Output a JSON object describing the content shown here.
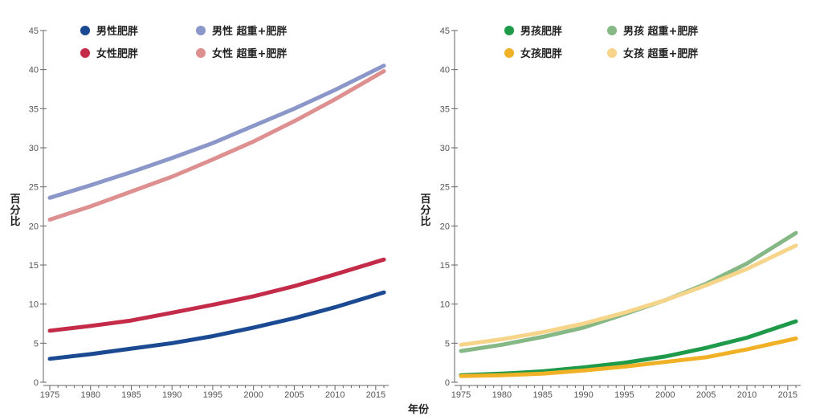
{
  "x_axis_title": "年份",
  "chart_data": [
    {
      "type": "line",
      "xlabel": "年份",
      "ylabel": "百分比",
      "xlim": [
        1975,
        2016
      ],
      "ylim": [
        0,
        45
      ],
      "xticks": [
        1975,
        1980,
        1985,
        1990,
        1995,
        2000,
        2005,
        2010,
        2015
      ],
      "yticks": [
        0,
        5,
        10,
        15,
        20,
        25,
        30,
        35,
        40,
        45
      ],
      "x": [
        1975,
        1980,
        1985,
        1990,
        1995,
        2000,
        2005,
        2010,
        2016
      ],
      "series": [
        {
          "name": "男性肥胖",
          "color": "#1b4a93",
          "values": [
            3.0,
            3.6,
            4.3,
            5.0,
            5.9,
            7.0,
            8.2,
            9.6,
            11.5
          ]
        },
        {
          "name": "男性 超重+肥胖",
          "color": "#8b97c9",
          "values": [
            23.6,
            25.2,
            26.9,
            28.7,
            30.6,
            32.8,
            35.0,
            37.4,
            40.5
          ]
        },
        {
          "name": "女性肥胖",
          "color": "#c32b48",
          "values": [
            6.6,
            7.2,
            7.9,
            8.9,
            9.9,
            11.0,
            12.3,
            13.8,
            15.7
          ]
        },
        {
          "name": "女性 超重+肥胖",
          "color": "#de8f8f",
          "values": [
            20.8,
            22.5,
            24.4,
            26.3,
            28.5,
            30.8,
            33.4,
            36.2,
            39.8
          ]
        }
      ]
    },
    {
      "type": "line",
      "xlabel": "年份",
      "ylabel": "百分比",
      "xlim": [
        1975,
        2016
      ],
      "ylim": [
        0,
        45
      ],
      "xticks": [
        1975,
        1980,
        1985,
        1990,
        1995,
        2000,
        2005,
        2010,
        2015
      ],
      "yticks": [
        0,
        5,
        10,
        15,
        20,
        25,
        30,
        35,
        40,
        45
      ],
      "x": [
        1975,
        1980,
        1985,
        1990,
        1995,
        2000,
        2005,
        2010,
        2016
      ],
      "series": [
        {
          "name": "男孩肥胖",
          "color": "#1f9a4a",
          "values": [
            0.9,
            1.1,
            1.4,
            1.9,
            2.5,
            3.3,
            4.4,
            5.7,
            7.8
          ]
        },
        {
          "name": "男孩 超重+肥胖",
          "color": "#86b886",
          "values": [
            4.0,
            4.8,
            5.8,
            7.0,
            8.7,
            10.5,
            12.6,
            15.2,
            19.1
          ]
        },
        {
          "name": "女孩肥胖",
          "color": "#f0b127",
          "values": [
            0.8,
            0.9,
            1.1,
            1.5,
            2.0,
            2.6,
            3.2,
            4.2,
            5.6
          ]
        },
        {
          "name": "女孩 超重+肥胖",
          "color": "#f6d48a",
          "values": [
            4.8,
            5.5,
            6.4,
            7.5,
            8.9,
            10.5,
            12.4,
            14.5,
            17.5
          ]
        }
      ]
    }
  ]
}
